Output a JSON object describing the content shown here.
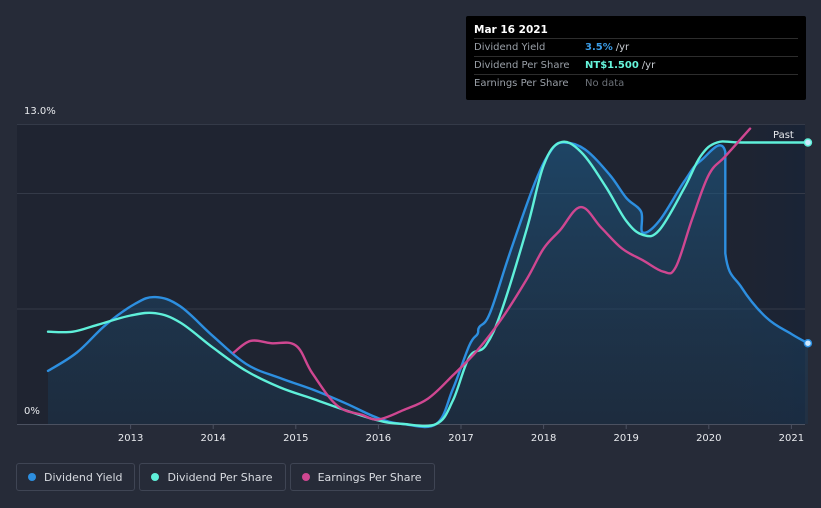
{
  "tooltip": {
    "date": "Mar 16 2021",
    "rows": [
      {
        "label": "Dividend Yield",
        "value": "3.5%",
        "unit": "/yr",
        "color": "#3b9ce6"
      },
      {
        "label": "Dividend Per Share",
        "value": "NT$1.500",
        "unit": "/yr",
        "color": "#66f5db"
      },
      {
        "label": "Earnings Per Share",
        "value": "No data",
        "unit": "",
        "color": "#6c7178"
      }
    ]
  },
  "past_label": "Past",
  "legend": [
    {
      "label": "Dividend Yield",
      "color": "#2d8fe0"
    },
    {
      "label": "Dividend Per Share",
      "color": "#5ff0da"
    },
    {
      "label": "Earnings Per Share",
      "color": "#cf4791"
    }
  ],
  "chart_data": {
    "type": "line",
    "ylim": [
      0,
      13
    ],
    "y_tick_labels": [
      "13.0%",
      "0%"
    ],
    "x_ticks": [
      2013,
      2014,
      2015,
      2016,
      2017,
      2018,
      2019,
      2020,
      2021
    ],
    "series": [
      {
        "name": "Dividend Yield",
        "color": "#2d8fe0",
        "points": [
          [
            2012.0,
            2.3
          ],
          [
            2012.35,
            3.1
          ],
          [
            2012.7,
            4.3
          ],
          [
            2013.05,
            5.2
          ],
          [
            2013.3,
            5.5
          ],
          [
            2013.6,
            5.1
          ],
          [
            2014.0,
            3.8
          ],
          [
            2014.4,
            2.6
          ],
          [
            2014.8,
            2.0
          ],
          [
            2015.2,
            1.5
          ],
          [
            2015.6,
            0.9
          ],
          [
            2016.0,
            0.25
          ],
          [
            2016.3,
            0.0
          ],
          [
            2016.7,
            0.0
          ],
          [
            2016.9,
            1.5
          ],
          [
            2017.1,
            3.4
          ],
          [
            2017.2,
            3.9
          ],
          [
            2017.22,
            4.2
          ],
          [
            2017.35,
            4.8
          ],
          [
            2017.6,
            7.5
          ],
          [
            2017.9,
            10.5
          ],
          [
            2018.1,
            11.9
          ],
          [
            2018.25,
            12.2
          ],
          [
            2018.5,
            11.9
          ],
          [
            2018.8,
            10.8
          ],
          [
            2019.0,
            9.8
          ],
          [
            2019.18,
            9.2
          ],
          [
            2019.2,
            8.3
          ],
          [
            2019.4,
            8.8
          ],
          [
            2019.7,
            10.5
          ],
          [
            2019.9,
            11.4
          ],
          [
            2020.2,
            11.8
          ],
          [
            2020.2,
            7.4
          ],
          [
            2020.4,
            5.9
          ],
          [
            2020.7,
            4.6
          ],
          [
            2021.0,
            3.9
          ],
          [
            2021.2,
            3.5
          ]
        ]
      },
      {
        "name": "Dividend Per Share",
        "color": "#5ff0da",
        "points": [
          [
            2012.0,
            4.0
          ],
          [
            2012.3,
            4.0
          ],
          [
            2012.6,
            4.3
          ],
          [
            2013.0,
            4.7
          ],
          [
            2013.3,
            4.8
          ],
          [
            2013.6,
            4.4
          ],
          [
            2014.0,
            3.3
          ],
          [
            2014.4,
            2.3
          ],
          [
            2014.8,
            1.6
          ],
          [
            2015.2,
            1.1
          ],
          [
            2015.6,
            0.6
          ],
          [
            2016.0,
            0.15
          ],
          [
            2016.3,
            0.0
          ],
          [
            2016.7,
            0.0
          ],
          [
            2016.9,
            1.0
          ],
          [
            2017.1,
            2.9
          ],
          [
            2017.3,
            3.4
          ],
          [
            2017.5,
            5.0
          ],
          [
            2017.8,
            8.5
          ],
          [
            2018.0,
            11.2
          ],
          [
            2018.2,
            12.2
          ],
          [
            2018.45,
            11.8
          ],
          [
            2018.75,
            10.3
          ],
          [
            2019.0,
            8.8
          ],
          [
            2019.2,
            8.2
          ],
          [
            2019.4,
            8.4
          ],
          [
            2019.7,
            10.2
          ],
          [
            2019.9,
            11.6
          ],
          [
            2020.1,
            12.2
          ],
          [
            2020.4,
            12.2
          ],
          [
            2021.2,
            12.2
          ]
        ]
      },
      {
        "name": "Earnings Per Share",
        "color": "#cf4791",
        "points": [
          [
            2014.25,
            3.1
          ],
          [
            2014.45,
            3.6
          ],
          [
            2014.7,
            3.5
          ],
          [
            2015.0,
            3.4
          ],
          [
            2015.2,
            2.2
          ],
          [
            2015.5,
            0.8
          ],
          [
            2015.8,
            0.4
          ],
          [
            2016.0,
            0.2
          ],
          [
            2016.3,
            0.6
          ],
          [
            2016.6,
            1.1
          ],
          [
            2016.9,
            2.1
          ],
          [
            2017.2,
            3.2
          ],
          [
            2017.5,
            4.6
          ],
          [
            2017.8,
            6.3
          ],
          [
            2018.0,
            7.6
          ],
          [
            2018.2,
            8.4
          ],
          [
            2018.45,
            9.4
          ],
          [
            2018.7,
            8.5
          ],
          [
            2018.95,
            7.6
          ],
          [
            2019.2,
            7.1
          ],
          [
            2019.45,
            6.6
          ],
          [
            2019.6,
            6.8
          ],
          [
            2019.8,
            8.9
          ],
          [
            2020.0,
            10.8
          ],
          [
            2020.2,
            11.6
          ],
          [
            2020.5,
            12.8
          ]
        ]
      }
    ]
  }
}
